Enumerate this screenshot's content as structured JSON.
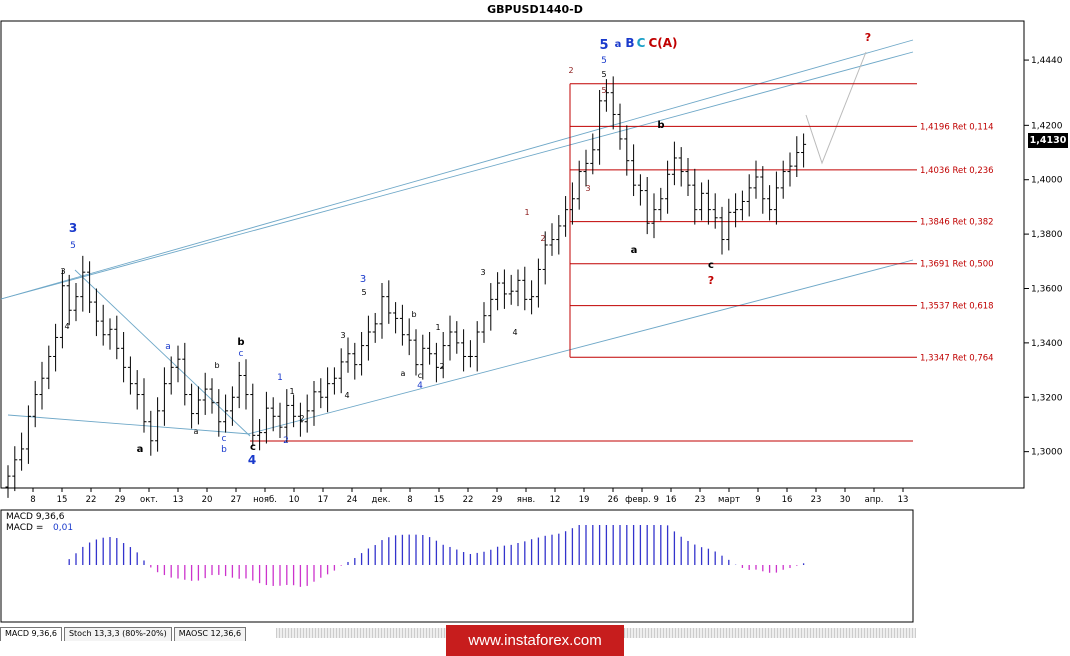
{
  "title": "GBPUSD1440-D",
  "current_price": "1,4130",
  "price_axis": [
    "1,4440",
    "1,4200",
    "1,4000",
    "1,3800",
    "1,3600",
    "1,3400",
    "1,3200",
    "1,3000"
  ],
  "date_axis": [
    "8",
    "15",
    "22",
    "29",
    "окт.",
    "13",
    "20",
    "27",
    "нояб.",
    "10",
    "17",
    "24",
    "дек.",
    "8",
    "15",
    "22",
    "29",
    "янв.",
    "12",
    "19",
    "26",
    "февр. 9",
    "16",
    "23",
    "март",
    "9",
    "16",
    "23",
    "30",
    "апр.",
    "13"
  ],
  "fib_levels": [
    {
      "label": "1,4196 Ret 0,114",
      "value": 1.4196
    },
    {
      "label": "1,4036 Ret 0,236",
      "value": 1.4036
    },
    {
      "label": "1,3846 Ret 0,382",
      "value": 1.3846
    },
    {
      "label": "1,3691 Ret 0,500",
      "value": 1.3691
    },
    {
      "label": "1,3537 Ret 0,618",
      "value": 1.3537
    },
    {
      "label": "1,3347 Ret 0,764",
      "value": 1.3347
    }
  ],
  "indicator": {
    "name": "MACD 9,36,6",
    "value_label": "MACD =",
    "value": "0,01"
  },
  "tabs": [
    "MACD 9,36,6",
    "Stoch 13,3,3 (80%-20%)",
    "MAOSC 12,36,6"
  ],
  "banner": "www.instaforex.com",
  "wave_labels": {
    "top": [
      "5",
      "a",
      "B",
      "C",
      "C(A)"
    ],
    "question": "?",
    "left": [
      "3",
      "5",
      "3",
      "4"
    ],
    "misc": [
      "a",
      "b",
      "c",
      "1",
      "2",
      "3",
      "4",
      "5"
    ]
  },
  "colors": {
    "bull": "#000000",
    "fib": "#c00000",
    "channel": "#6fa8c8",
    "macd": "#3333cc",
    "macd_neg": "#cc33cc",
    "wave_blue": "#1a3acc",
    "wave_red": "#c00000"
  },
  "chart_data": {
    "type": "candlestick",
    "title": "GBPUSD1440-D",
    "ylim": [
      1.287,
      1.458
    ],
    "closes": [
      1.291,
      1.297,
      1.301,
      1.313,
      1.321,
      1.327,
      1.335,
      1.342,
      1.361,
      1.352,
      1.357,
      1.366,
      1.355,
      1.348,
      1.343,
      1.345,
      1.338,
      1.331,
      1.325,
      1.321,
      1.311,
      1.304,
      1.315,
      1.325,
      1.331,
      1.334,
      1.321,
      1.314,
      1.319,
      1.323,
      1.318,
      1.311,
      1.315,
      1.32,
      1.328,
      1.321,
      1.306,
      1.307,
      1.316,
      1.313,
      1.309,
      1.317,
      1.313,
      1.311,
      1.315,
      1.322,
      1.32,
      1.325,
      1.327,
      1.333,
      1.336,
      1.332,
      1.339,
      1.344,
      1.347,
      1.357,
      1.351,
      1.349,
      1.343,
      1.341,
      1.332,
      1.338,
      1.336,
      1.331,
      1.339,
      1.344,
      1.34,
      1.335,
      1.335,
      1.344,
      1.35,
      1.356,
      1.362,
      1.358,
      1.359,
      1.363,
      1.356,
      1.357,
      1.367,
      1.376,
      1.378,
      1.383,
      1.389,
      1.393,
      1.403,
      1.406,
      1.411,
      1.429,
      1.432,
      1.424,
      1.415,
      1.407,
      1.398,
      1.396,
      1.384,
      1.389,
      1.393,
      1.402,
      1.408,
      1.403,
      1.398,
      1.389,
      1.395,
      1.389,
      1.386,
      1.378,
      1.388,
      1.389,
      1.392,
      1.397,
      1.401,
      1.393,
      1.389,
      1.397,
      1.403,
      1.405,
      1.41,
      1.413
    ]
  }
}
